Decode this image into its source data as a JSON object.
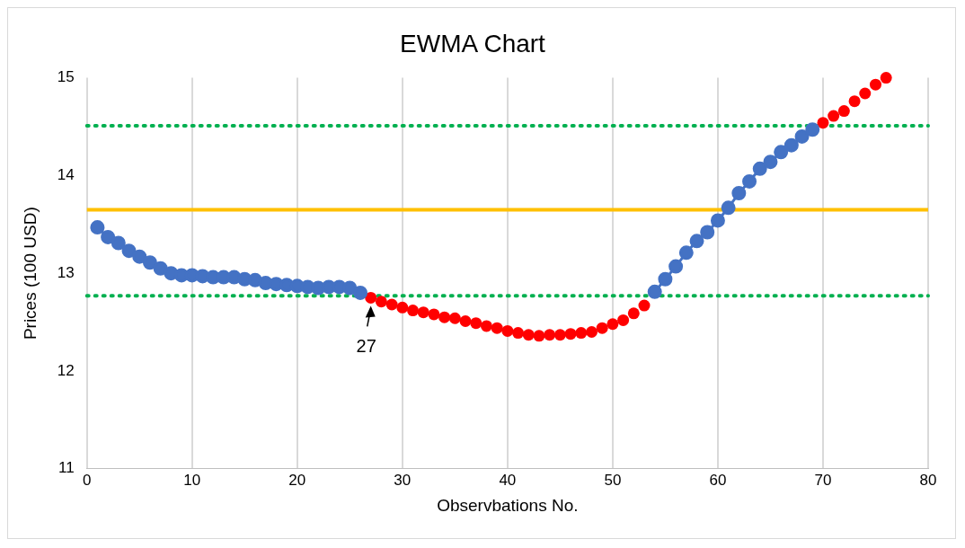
{
  "chart_data": {
    "type": "line",
    "title": "EWMA Chart",
    "xlabel": "Observbations No.",
    "ylabel": "Prices (100 USD)",
    "x": [
      1,
      2,
      3,
      4,
      5,
      6,
      7,
      8,
      9,
      10,
      11,
      12,
      13,
      14,
      15,
      16,
      17,
      18,
      19,
      20,
      21,
      22,
      23,
      24,
      25,
      26,
      27,
      28,
      29,
      30,
      31,
      32,
      33,
      34,
      35,
      36,
      37,
      38,
      39,
      40,
      41,
      42,
      43,
      44,
      45,
      46,
      47,
      48,
      49,
      50,
      51,
      52,
      53,
      54,
      55,
      56,
      57,
      58,
      59,
      60,
      61,
      62,
      63,
      64,
      65,
      66,
      67,
      68,
      69,
      70,
      71,
      72,
      73,
      74,
      75,
      76
    ],
    "series": [
      {
        "color": "#4472c4",
        "values": [
          13.47,
          13.37,
          13.31,
          13.23,
          13.17,
          13.11,
          13.05,
          13.0,
          12.98,
          12.98,
          12.97,
          12.96,
          12.96,
          12.96,
          12.94,
          12.93,
          12.9,
          12.89,
          12.88,
          12.87,
          12.86,
          12.85,
          12.86,
          12.86,
          12.85,
          12.8,
          null,
          null,
          null,
          null,
          null,
          null,
          null,
          null,
          null,
          null,
          null,
          null,
          null,
          null,
          null,
          null,
          null,
          null,
          null,
          null,
          null,
          null,
          null,
          null,
          null,
          null,
          null,
          12.81,
          12.94,
          13.07,
          13.21,
          13.33,
          13.42,
          13.54,
          13.67,
          13.82,
          13.94,
          14.07,
          14.14,
          14.24,
          14.31,
          14.4,
          14.47,
          null,
          null,
          null,
          null,
          null,
          null,
          null
        ]
      },
      {
        "type": "scatter",
        "color": "#ff0000",
        "values": [
          null,
          null,
          null,
          null,
          null,
          null,
          null,
          null,
          null,
          null,
          null,
          null,
          null,
          null,
          null,
          null,
          null,
          null,
          null,
          null,
          null,
          null,
          null,
          null,
          null,
          null,
          12.75,
          12.71,
          12.68,
          12.65,
          12.62,
          12.6,
          12.58,
          12.55,
          12.54,
          12.51,
          12.49,
          12.46,
          12.44,
          12.41,
          12.39,
          12.37,
          12.36,
          12.37,
          12.37,
          12.38,
          12.39,
          12.4,
          12.44,
          12.48,
          12.52,
          12.59,
          12.67,
          null,
          null,
          null,
          null,
          null,
          null,
          null,
          null,
          null,
          null,
          null,
          null,
          null,
          null,
          null,
          null,
          14.54,
          14.61,
          14.66,
          14.76,
          14.84,
          14.93,
          15.0
        ]
      }
    ],
    "xlim": [
      0,
      80
    ],
    "xticks": [
      0,
      10,
      20,
      30,
      40,
      50,
      60,
      70,
      80
    ],
    "ylim": [
      11,
      15
    ],
    "yticks": [
      11,
      12,
      13,
      14,
      15
    ],
    "grid": "x",
    "marker": "circle",
    "ref_lines": [
      {
        "axis": "y",
        "value": 13.65,
        "color": "#ffc000",
        "line_style": "solid"
      },
      {
        "axis": "y",
        "value": 14.51,
        "color": "#00b050",
        "line_style": "dotted"
      },
      {
        "axis": "y",
        "value": 12.77,
        "color": "#00b050",
        "line_style": "dotted"
      }
    ],
    "annotations": [
      {
        "text": "27",
        "x": 27,
        "y": 12.75
      }
    ]
  }
}
